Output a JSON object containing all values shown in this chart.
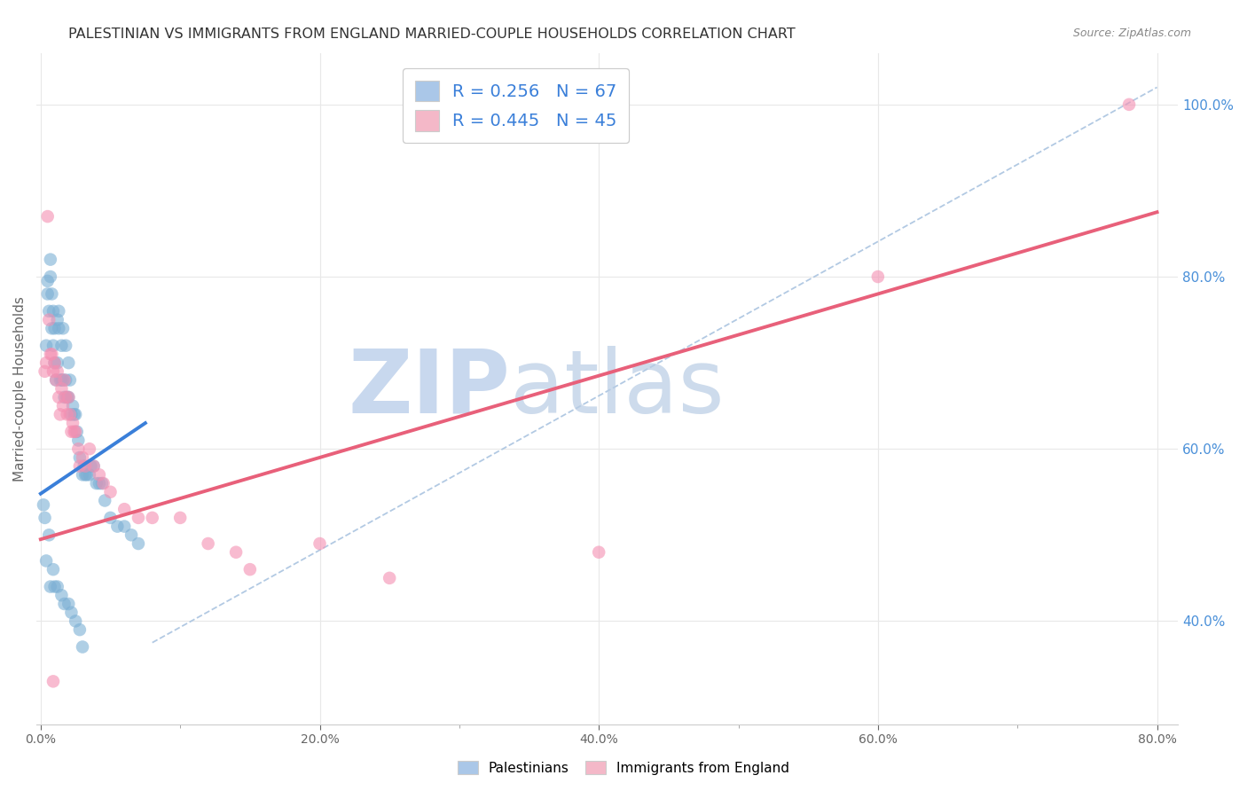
{
  "title": "PALESTINIAN VS IMMIGRANTS FROM ENGLAND MARRIED-COUPLE HOUSEHOLDS CORRELATION CHART",
  "source": "Source: ZipAtlas.com",
  "ylabel": "Married-couple Households",
  "x_min": -0.003,
  "x_max": 0.815,
  "y_min": 0.28,
  "y_max": 1.06,
  "x_tick_labels": [
    "0.0%",
    "",
    "20.0%",
    "",
    "40.0%",
    "",
    "60.0%",
    "",
    "80.0%"
  ],
  "x_tick_vals": [
    0.0,
    0.1,
    0.2,
    0.3,
    0.4,
    0.5,
    0.6,
    0.7,
    0.8
  ],
  "x_tick_show": [
    0.0,
    0.2,
    0.4,
    0.6,
    0.8
  ],
  "x_tick_show_labels": [
    "0.0%",
    "20.0%",
    "40.0%",
    "60.0%",
    "80.0%"
  ],
  "y_tick_vals": [
    0.4,
    0.6,
    0.8,
    1.0
  ],
  "y_tick_labels": [
    "40.0%",
    "60.0%",
    "80.0%",
    "100.0%"
  ],
  "legend_entries": [
    {
      "label": "R = 0.256   N = 67",
      "color": "#aac7e8"
    },
    {
      "label": "R = 0.445   N = 45",
      "color": "#f4b8c8"
    }
  ],
  "legend_bottom": [
    "Palestinians",
    "Immigrants from England"
  ],
  "legend_bottom_colors": [
    "#aac7e8",
    "#f4b8c8"
  ],
  "blue_scatter_color": "#7bafd4",
  "pink_scatter_color": "#f48fb1",
  "blue_line_color": "#3a7fd9",
  "pink_line_color": "#e8607a",
  "diag_line_color": "#aac4e0",
  "background_color": "#ffffff",
  "grid_color": "#e8e8e8",
  "blue_points_x": [
    0.002,
    0.004,
    0.005,
    0.005,
    0.006,
    0.007,
    0.007,
    0.008,
    0.008,
    0.009,
    0.009,
    0.01,
    0.01,
    0.011,
    0.012,
    0.012,
    0.013,
    0.013,
    0.014,
    0.015,
    0.015,
    0.016,
    0.016,
    0.017,
    0.018,
    0.018,
    0.019,
    0.02,
    0.02,
    0.021,
    0.022,
    0.023,
    0.024,
    0.025,
    0.026,
    0.027,
    0.028,
    0.03,
    0.031,
    0.032,
    0.033,
    0.035,
    0.036,
    0.038,
    0.04,
    0.042,
    0.044,
    0.046,
    0.05,
    0.055,
    0.06,
    0.065,
    0.07,
    0.003,
    0.004,
    0.006,
    0.007,
    0.009,
    0.01,
    0.012,
    0.015,
    0.017,
    0.02,
    0.022,
    0.025,
    0.028,
    0.03
  ],
  "blue_points_y": [
    0.535,
    0.72,
    0.795,
    0.78,
    0.76,
    0.82,
    0.8,
    0.74,
    0.78,
    0.72,
    0.76,
    0.7,
    0.74,
    0.68,
    0.7,
    0.75,
    0.74,
    0.76,
    0.68,
    0.72,
    0.68,
    0.68,
    0.74,
    0.66,
    0.68,
    0.72,
    0.66,
    0.7,
    0.66,
    0.68,
    0.64,
    0.65,
    0.64,
    0.64,
    0.62,
    0.61,
    0.59,
    0.57,
    0.58,
    0.57,
    0.57,
    0.57,
    0.58,
    0.58,
    0.56,
    0.56,
    0.56,
    0.54,
    0.52,
    0.51,
    0.51,
    0.5,
    0.49,
    0.52,
    0.47,
    0.5,
    0.44,
    0.46,
    0.44,
    0.44,
    0.43,
    0.42,
    0.42,
    0.41,
    0.4,
    0.39,
    0.37
  ],
  "pink_points_x": [
    0.003,
    0.004,
    0.005,
    0.006,
    0.007,
    0.008,
    0.009,
    0.01,
    0.011,
    0.012,
    0.013,
    0.014,
    0.015,
    0.016,
    0.017,
    0.018,
    0.019,
    0.02,
    0.021,
    0.022,
    0.023,
    0.024,
    0.025,
    0.027,
    0.028,
    0.03,
    0.032,
    0.035,
    0.038,
    0.042,
    0.045,
    0.05,
    0.06,
    0.07,
    0.08,
    0.1,
    0.12,
    0.14,
    0.15,
    0.2,
    0.25,
    0.4,
    0.6,
    0.78,
    0.009
  ],
  "pink_points_y": [
    0.69,
    0.7,
    0.87,
    0.75,
    0.71,
    0.71,
    0.69,
    0.7,
    0.68,
    0.69,
    0.66,
    0.64,
    0.67,
    0.65,
    0.68,
    0.66,
    0.64,
    0.66,
    0.64,
    0.62,
    0.63,
    0.62,
    0.62,
    0.6,
    0.58,
    0.59,
    0.58,
    0.6,
    0.58,
    0.57,
    0.56,
    0.55,
    0.53,
    0.52,
    0.52,
    0.52,
    0.49,
    0.48,
    0.46,
    0.49,
    0.45,
    0.48,
    0.8,
    1.0,
    0.33
  ],
  "blue_line_x": [
    0.0,
    0.075
  ],
  "blue_line_y": [
    0.548,
    0.63
  ],
  "pink_line_x": [
    0.0,
    0.8
  ],
  "pink_line_y": [
    0.495,
    0.875
  ],
  "diag_line_x": [
    0.08,
    0.8
  ],
  "diag_line_y": [
    0.375,
    1.02
  ]
}
